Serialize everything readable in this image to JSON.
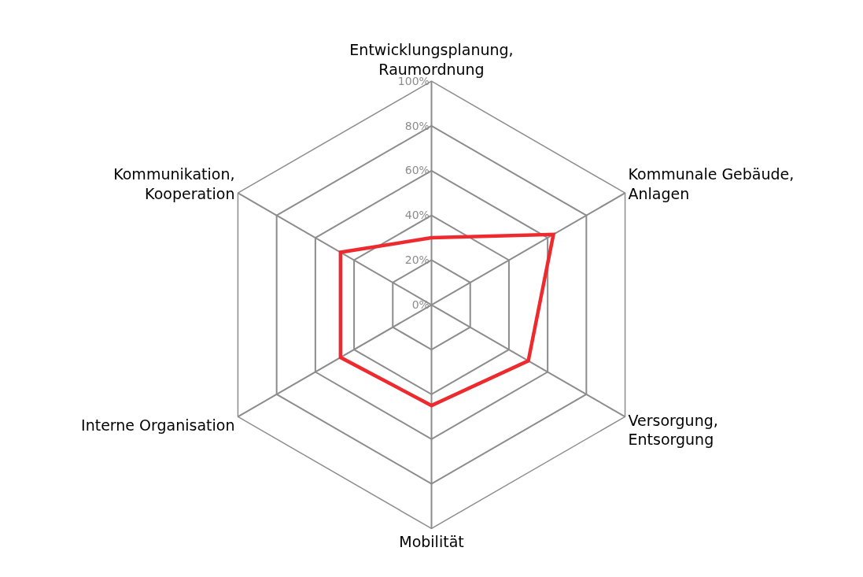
{
  "chart_data": {
    "type": "radar",
    "categories": [
      "Entwicklungsplanung,\nRaumordnung",
      "Kommunale Gebäude,\nAnlagen",
      "Versorgung,\nEntsorgung",
      "Mobilität",
      "Interne Organisation",
      "Kommunikation,\nKooperation"
    ],
    "series": [
      {
        "color": "#ee2a2e",
        "values": [
          30,
          63,
          50,
          45,
          47,
          47
        ]
      }
    ],
    "ylim": [
      0,
      100
    ],
    "yticks": [
      {
        "value": 0,
        "label": "0%"
      },
      {
        "value": 20,
        "label": "20%"
      },
      {
        "value": 40,
        "label": "40%"
      },
      {
        "value": 60,
        "label": "60%"
      },
      {
        "value": 80,
        "label": "80%"
      },
      {
        "value": 100,
        "label": "100%"
      }
    ],
    "grid": true,
    "marker": "none",
    "line_style": "solid"
  }
}
